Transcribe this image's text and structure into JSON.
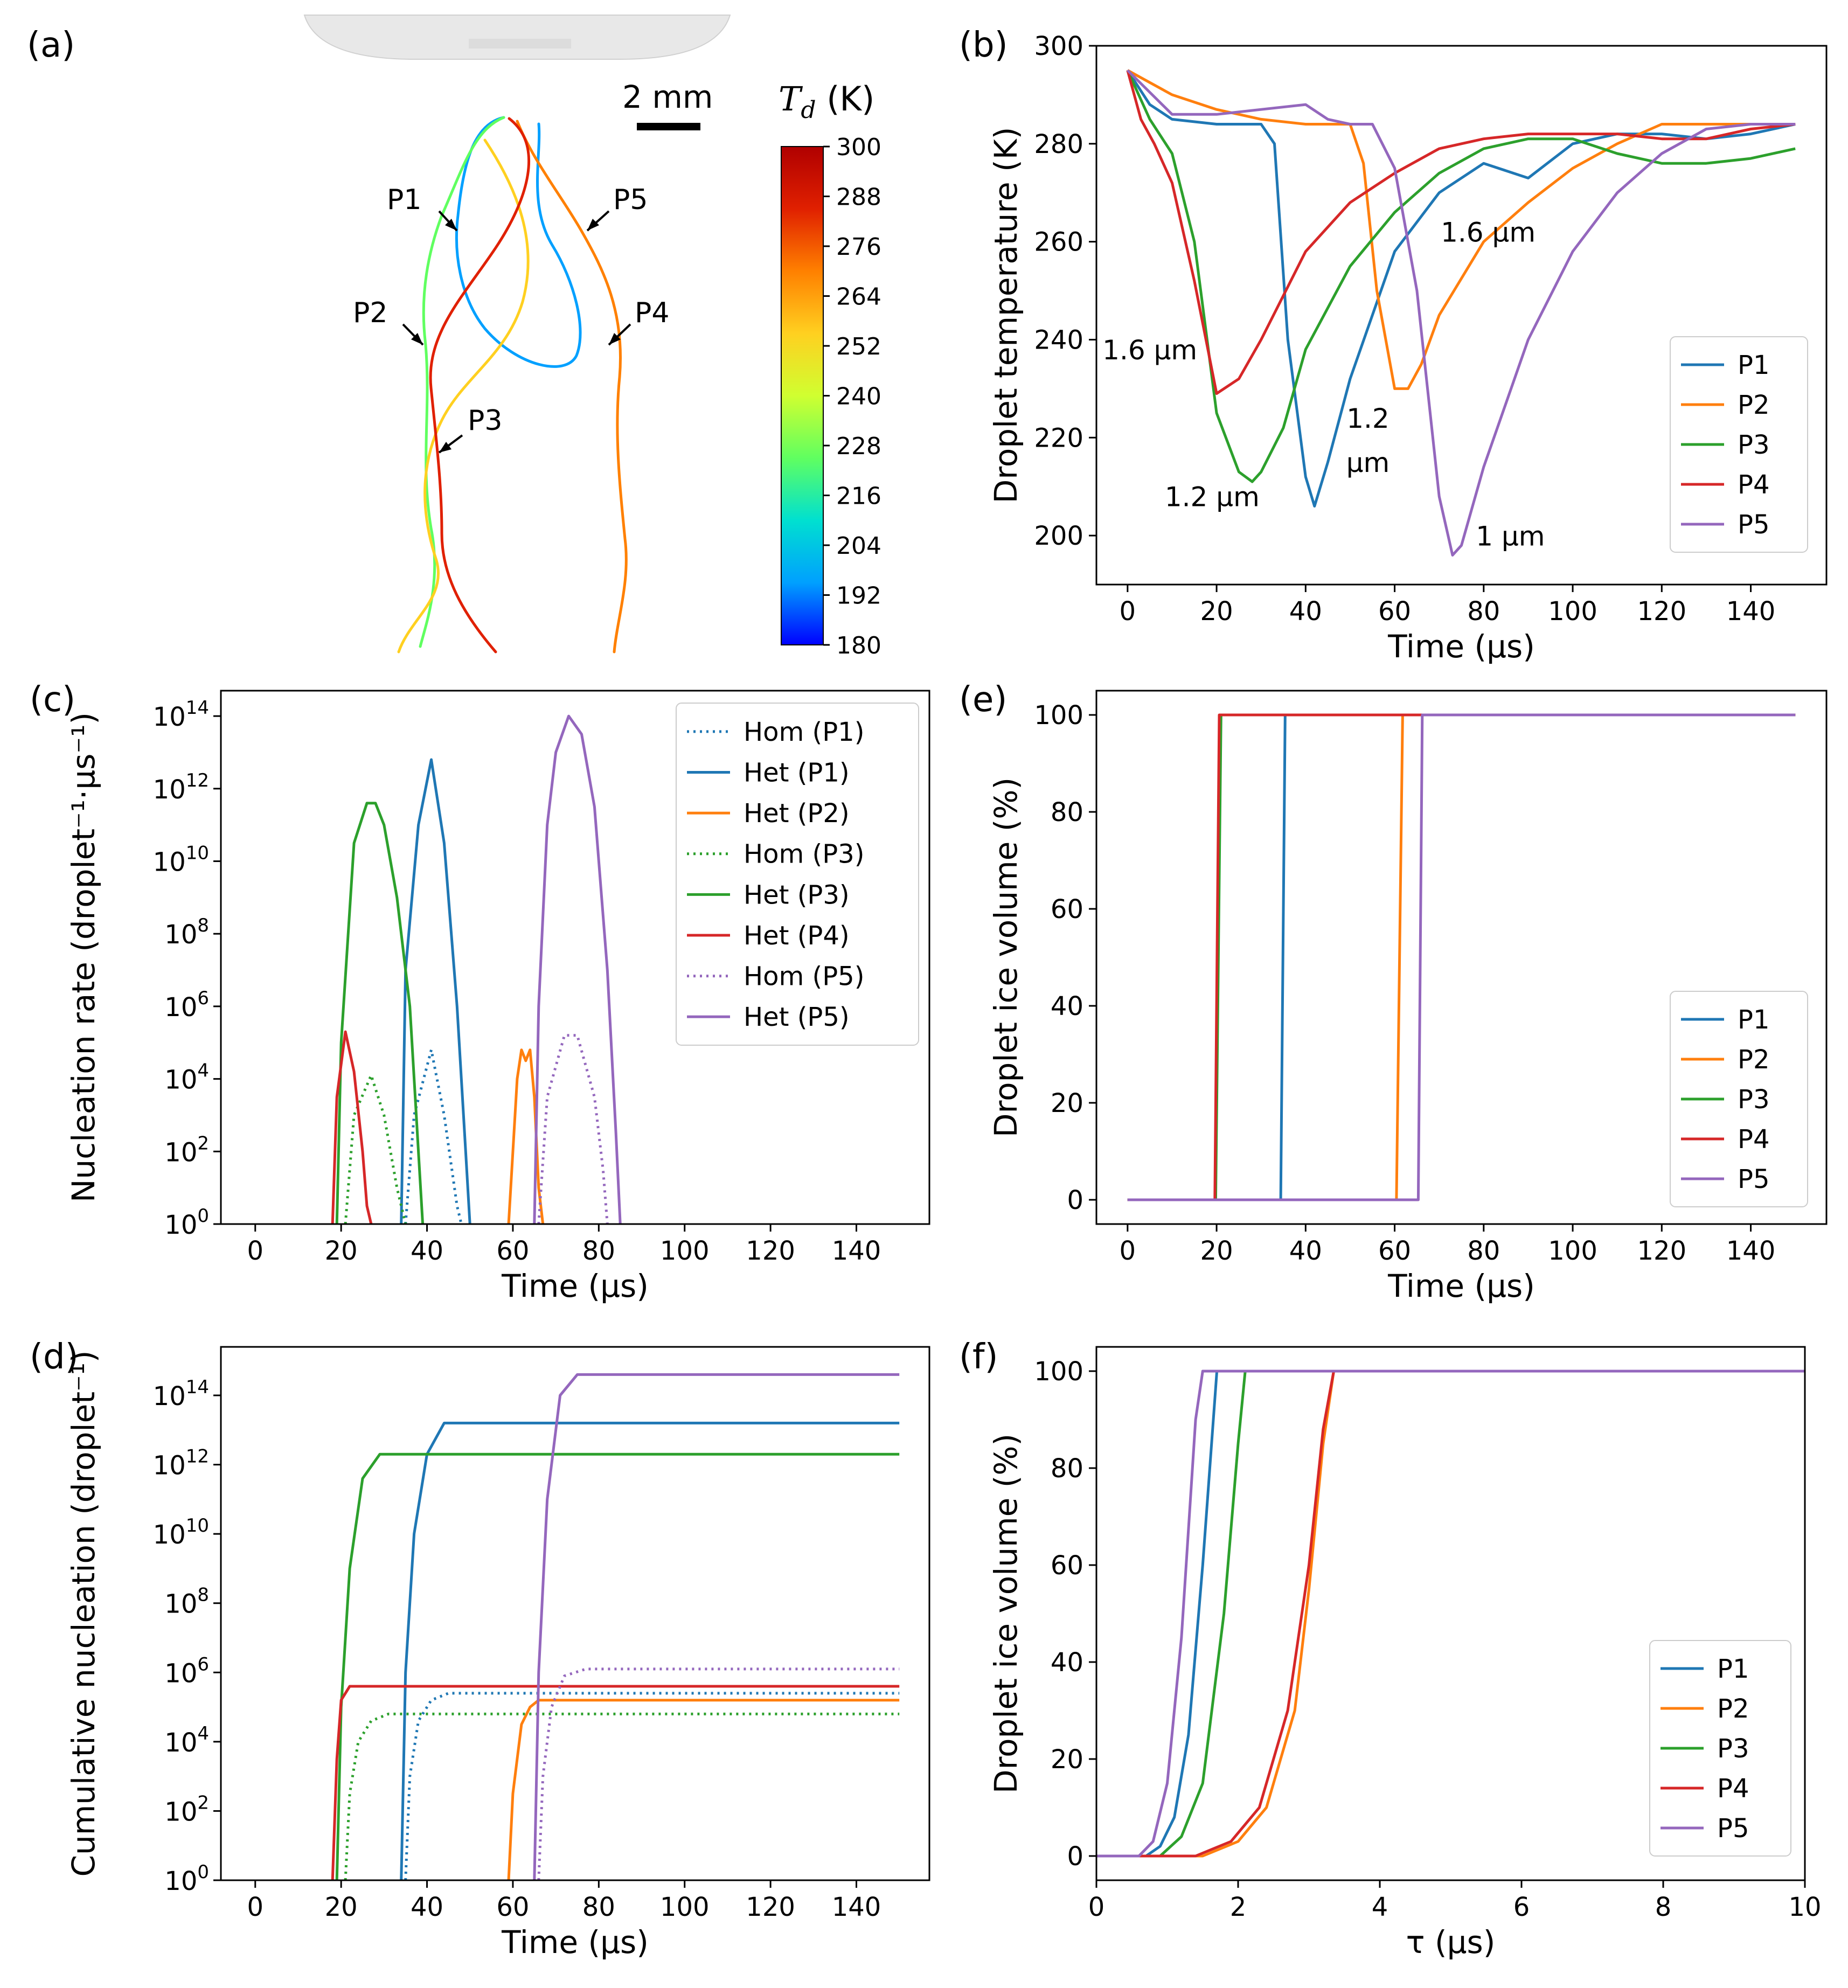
{
  "figure": {
    "panel_a": {
      "label": "(a)",
      "scale_bar_label": "2 mm",
      "colorbar_title": "T_d (K)",
      "colorbar_ticks": [
        300,
        288,
        276,
        264,
        252,
        240,
        228,
        216,
        204,
        192,
        180
      ],
      "colormap": [
        "#0000ff",
        "#00a0ff",
        "#00e0d0",
        "#60ff60",
        "#d0ff30",
        "#ffd020",
        "#ff8000",
        "#e02000",
        "#b00000"
      ],
      "points": [
        "P1",
        "P2",
        "P3",
        "P4",
        "P5"
      ]
    },
    "colors": {
      "P1": "#1f77b4",
      "P2": "#ff7f0e",
      "P3": "#2ca02c",
      "P4": "#d62728",
      "P5": "#9467bd"
    }
  },
  "chart_data": [
    {
      "panel": "(b)",
      "type": "line",
      "xlabel": "Time (μs)",
      "ylabel": "Droplet temperature (K)",
      "xlim": [
        -7,
        157
      ],
      "ylim": [
        190,
        300
      ],
      "xticks": [
        0,
        20,
        40,
        60,
        80,
        100,
        120,
        140
      ],
      "yticks": [
        200,
        220,
        240,
        260,
        280,
        300
      ],
      "legend": "lower-right",
      "series": [
        {
          "name": "P1",
          "x": [
            0,
            5,
            10,
            20,
            30,
            33,
            36,
            40,
            42,
            45,
            50,
            60,
            70,
            80,
            90,
            100,
            110,
            120,
            130,
            140,
            150
          ],
          "y": [
            295,
            288,
            285,
            284,
            284,
            280,
            240,
            212,
            206,
            215,
            232,
            258,
            270,
            276,
            273,
            280,
            282,
            282,
            281,
            282,
            284
          ]
        },
        {
          "name": "P2",
          "x": [
            0,
            10,
            20,
            30,
            40,
            50,
            53,
            56,
            60,
            63,
            66,
            70,
            80,
            90,
            100,
            110,
            120,
            130,
            140,
            150
          ],
          "y": [
            295,
            290,
            287,
            285,
            284,
            284,
            276,
            250,
            230,
            230,
            235,
            245,
            260,
            268,
            275,
            280,
            284,
            284,
            284,
            284
          ]
        },
        {
          "name": "P3",
          "x": [
            0,
            5,
            10,
            15,
            20,
            25,
            28,
            30,
            35,
            40,
            50,
            60,
            70,
            80,
            90,
            100,
            110,
            120,
            130,
            140,
            150
          ],
          "y": [
            295,
            285,
            278,
            260,
            225,
            213,
            211,
            213,
            222,
            238,
            255,
            266,
            274,
            279,
            281,
            281,
            278,
            276,
            276,
            277,
            279
          ]
        },
        {
          "name": "P4",
          "x": [
            0,
            3,
            6,
            10,
            15,
            20,
            25,
            30,
            40,
            50,
            60,
            70,
            80,
            90,
            100,
            110,
            120,
            130,
            140,
            150
          ],
          "y": [
            295,
            285,
            280,
            272,
            252,
            229,
            232,
            240,
            258,
            268,
            274,
            279,
            281,
            282,
            282,
            282,
            281,
            281,
            283,
            284
          ]
        },
        {
          "name": "P5",
          "x": [
            0,
            10,
            20,
            30,
            40,
            45,
            50,
            55,
            60,
            65,
            70,
            73,
            75,
            80,
            90,
            100,
            110,
            120,
            130,
            140,
            150
          ],
          "y": [
            295,
            286,
            286,
            287,
            288,
            285,
            284,
            284,
            275,
            250,
            208,
            196,
            198,
            214,
            240,
            258,
            270,
            278,
            283,
            284,
            284
          ]
        }
      ],
      "annotations": [
        {
          "text": "1.6 μm",
          "x": 5,
          "y": 236
        },
        {
          "text": "1.2 μm",
          "x": 19,
          "y": 206
        },
        {
          "text": "1.2",
          "x": 54,
          "y": 222
        },
        {
          "text": "μm",
          "x": 54,
          "y": 213
        },
        {
          "text": "1.6 μm",
          "x": 81,
          "y": 260
        },
        {
          "text": "1 μm",
          "x": 86,
          "y": 198
        }
      ]
    },
    {
      "panel": "(c)",
      "type": "line",
      "xlabel": "Time (μs)",
      "ylabel": "Nucleation rate (droplet⁻¹·μs⁻¹)",
      "yscale": "log",
      "xlim": [
        -8,
        157
      ],
      "ylim_log10": [
        0,
        14.7
      ],
      "xticks": [
        0,
        20,
        40,
        60,
        80,
        100,
        120,
        140
      ],
      "yticks_exp": [
        0,
        2,
        4,
        6,
        8,
        10,
        12,
        14
      ],
      "legend": "upper-right",
      "series": [
        {
          "name": "Hom (P1)",
          "color": "P1",
          "style": "dotted",
          "x": [
            35,
            37,
            41,
            44,
            47,
            48
          ],
          "log10": [
            0,
            3.0,
            4.8,
            3.0,
            0.5,
            0
          ]
        },
        {
          "name": "Het (P1)",
          "color": "P1",
          "style": "solid",
          "x": [
            34,
            35,
            38,
            41,
            44,
            47,
            49,
            50
          ],
          "log10": [
            0,
            7,
            11,
            12.8,
            10.5,
            6,
            2,
            0
          ]
        },
        {
          "name": "Het (P2)",
          "color": "P2",
          "style": "solid",
          "x": [
            59,
            61,
            62,
            63,
            64,
            65,
            66,
            67
          ],
          "log10": [
            0,
            4.0,
            4.8,
            4.5,
            4.8,
            3.5,
            1,
            0
          ]
        },
        {
          "name": "Hom (P3)",
          "color": "P3",
          "style": "dotted",
          "x": [
            21,
            23,
            27,
            30,
            33,
            35
          ],
          "log10": [
            0,
            3.0,
            4.1,
            3.0,
            1,
            0
          ]
        },
        {
          "name": "Het (P3)",
          "color": "P3",
          "style": "solid",
          "x": [
            19,
            20,
            23,
            26,
            28,
            30,
            33,
            36,
            38,
            39
          ],
          "log10": [
            0,
            5,
            10.5,
            11.6,
            11.6,
            11,
            9,
            6,
            2,
            0
          ]
        },
        {
          "name": "Het (P4)",
          "color": "P4",
          "style": "solid",
          "x": [
            18,
            19,
            21,
            23,
            25,
            26,
            27
          ],
          "log10": [
            0,
            3.5,
            5.3,
            4.2,
            2,
            0.5,
            0
          ]
        },
        {
          "name": "Hom (P5)",
          "color": "P5",
          "style": "dotted",
          "x": [
            66,
            68,
            72,
            75,
            79,
            81,
            82
          ],
          "log10": [
            0,
            3.5,
            5.2,
            5.2,
            3.5,
            1.5,
            0
          ]
        },
        {
          "name": "Het (P5)",
          "color": "P5",
          "style": "solid",
          "x": [
            65,
            66,
            68,
            70,
            73,
            76,
            79,
            82,
            84,
            85
          ],
          "log10": [
            0,
            6,
            11,
            13,
            14.0,
            13.5,
            11.5,
            7,
            2.5,
            0
          ]
        }
      ]
    },
    {
      "panel": "(d)",
      "type": "line",
      "xlabel": "Time (μs)",
      "ylabel": "Cumulative nucleation (droplet⁻¹)",
      "yscale": "log",
      "xlim": [
        -8,
        157
      ],
      "ylim_log10": [
        0,
        15.4
      ],
      "xticks": [
        0,
        20,
        40,
        60,
        80,
        100,
        120,
        140
      ],
      "yticks_exp": [
        0,
        2,
        4,
        6,
        8,
        10,
        12,
        14
      ],
      "series": [
        {
          "name": "Hom (P1)",
          "color": "P1",
          "style": "dotted",
          "x": [
            35,
            36,
            38,
            41,
            45,
            150
          ],
          "log10": [
            0,
            3.0,
            4.6,
            5.2,
            5.4,
            5.4
          ]
        },
        {
          "name": "Het (P1)",
          "color": "P1",
          "style": "solid",
          "x": [
            34,
            35,
            37,
            40,
            44,
            150
          ],
          "log10": [
            0,
            6,
            10,
            12.3,
            13.2,
            13.2
          ]
        },
        {
          "name": "Het (P2)",
          "color": "P2",
          "style": "solid",
          "x": [
            59,
            60,
            62,
            64,
            66,
            150
          ],
          "log10": [
            0,
            2.5,
            4.5,
            5.0,
            5.2,
            5.2
          ]
        },
        {
          "name": "Hom (P3)",
          "color": "P3",
          "style": "dotted",
          "x": [
            21,
            22,
            24,
            27,
            31,
            150
          ],
          "log10": [
            0,
            2.5,
            4.0,
            4.6,
            4.8,
            4.8
          ]
        },
        {
          "name": "Het (P3)",
          "color": "P3",
          "style": "solid",
          "x": [
            19,
            20,
            22,
            25,
            29,
            150
          ],
          "log10": [
            0,
            5,
            9,
            11.6,
            12.3,
            12.3
          ]
        },
        {
          "name": "Het (P4)",
          "color": "P4",
          "style": "solid",
          "x": [
            18,
            19,
            20,
            22,
            150
          ],
          "log10": [
            0,
            3.5,
            5.2,
            5.6,
            5.6
          ]
        },
        {
          "name": "Hom (P5)",
          "color": "P5",
          "style": "dotted",
          "x": [
            66,
            67,
            69,
            72,
            77,
            150
          ],
          "log10": [
            0,
            3,
            5.0,
            5.9,
            6.1,
            6.1
          ]
        },
        {
          "name": "Het (P5)",
          "color": "P5",
          "style": "solid",
          "x": [
            65,
            66,
            68,
            71,
            75,
            150
          ],
          "log10": [
            0,
            6,
            11,
            14,
            14.6,
            14.6
          ]
        }
      ]
    },
    {
      "panel": "(e)",
      "type": "line",
      "xlabel": "Time (μs)",
      "ylabel": "Droplet ice volume (%)",
      "xlim": [
        -7,
        157
      ],
      "ylim": [
        -5,
        105
      ],
      "xticks": [
        0,
        20,
        40,
        60,
        80,
        100,
        120,
        140
      ],
      "yticks": [
        0,
        20,
        40,
        60,
        80,
        100
      ],
      "legend": "lower-right",
      "series": [
        {
          "name": "P1",
          "x": [
            0,
            34.4,
            35.4,
            150
          ],
          "y": [
            0,
            0,
            100,
            100
          ]
        },
        {
          "name": "P2",
          "x": [
            0,
            60.4,
            61.8,
            150
          ],
          "y": [
            0,
            0,
            100,
            100
          ]
        },
        {
          "name": "P3",
          "x": [
            0,
            19.8,
            21.0,
            150
          ],
          "y": [
            0,
            0,
            100,
            100
          ]
        },
        {
          "name": "P4",
          "x": [
            0,
            19.6,
            20.6,
            150
          ],
          "y": [
            0,
            0,
            100,
            100
          ]
        },
        {
          "name": "P5",
          "x": [
            0,
            65.3,
            66.2,
            150
          ],
          "y": [
            0,
            0,
            100,
            100
          ]
        }
      ]
    },
    {
      "panel": "(f)",
      "type": "line",
      "xlabel": "τ (μs)",
      "ylabel": "Droplet ice volume (%)",
      "xlim": [
        0,
        10
      ],
      "ylim": [
        -5,
        105
      ],
      "xticks": [
        0,
        2,
        4,
        6,
        8,
        10
      ],
      "yticks": [
        0,
        20,
        40,
        60,
        80,
        100
      ],
      "legend": "lower-right",
      "series": [
        {
          "name": "P1",
          "x": [
            0,
            0.7,
            0.9,
            1.1,
            1.3,
            1.5,
            1.7,
            10
          ],
          "y": [
            0,
            0,
            2,
            8,
            25,
            60,
            100,
            100
          ]
        },
        {
          "name": "P2",
          "x": [
            0,
            1.5,
            2.0,
            2.4,
            2.8,
            3.0,
            3.2,
            3.35,
            10
          ],
          "y": [
            0,
            0,
            3,
            10,
            30,
            55,
            85,
            100,
            100
          ]
        },
        {
          "name": "P3",
          "x": [
            0,
            0.9,
            1.2,
            1.5,
            1.8,
            2.0,
            2.1,
            10
          ],
          "y": [
            0,
            0,
            4,
            15,
            50,
            85,
            100,
            100
          ]
        },
        {
          "name": "P4",
          "x": [
            0,
            1.4,
            1.9,
            2.3,
            2.7,
            3.0,
            3.2,
            3.35,
            10
          ],
          "y": [
            0,
            0,
            3,
            10,
            30,
            60,
            88,
            100,
            100
          ]
        },
        {
          "name": "P5",
          "x": [
            0,
            0.6,
            0.8,
            1.0,
            1.2,
            1.4,
            1.5,
            10
          ],
          "y": [
            0,
            0,
            3,
            15,
            45,
            90,
            100,
            100
          ]
        }
      ]
    }
  ]
}
